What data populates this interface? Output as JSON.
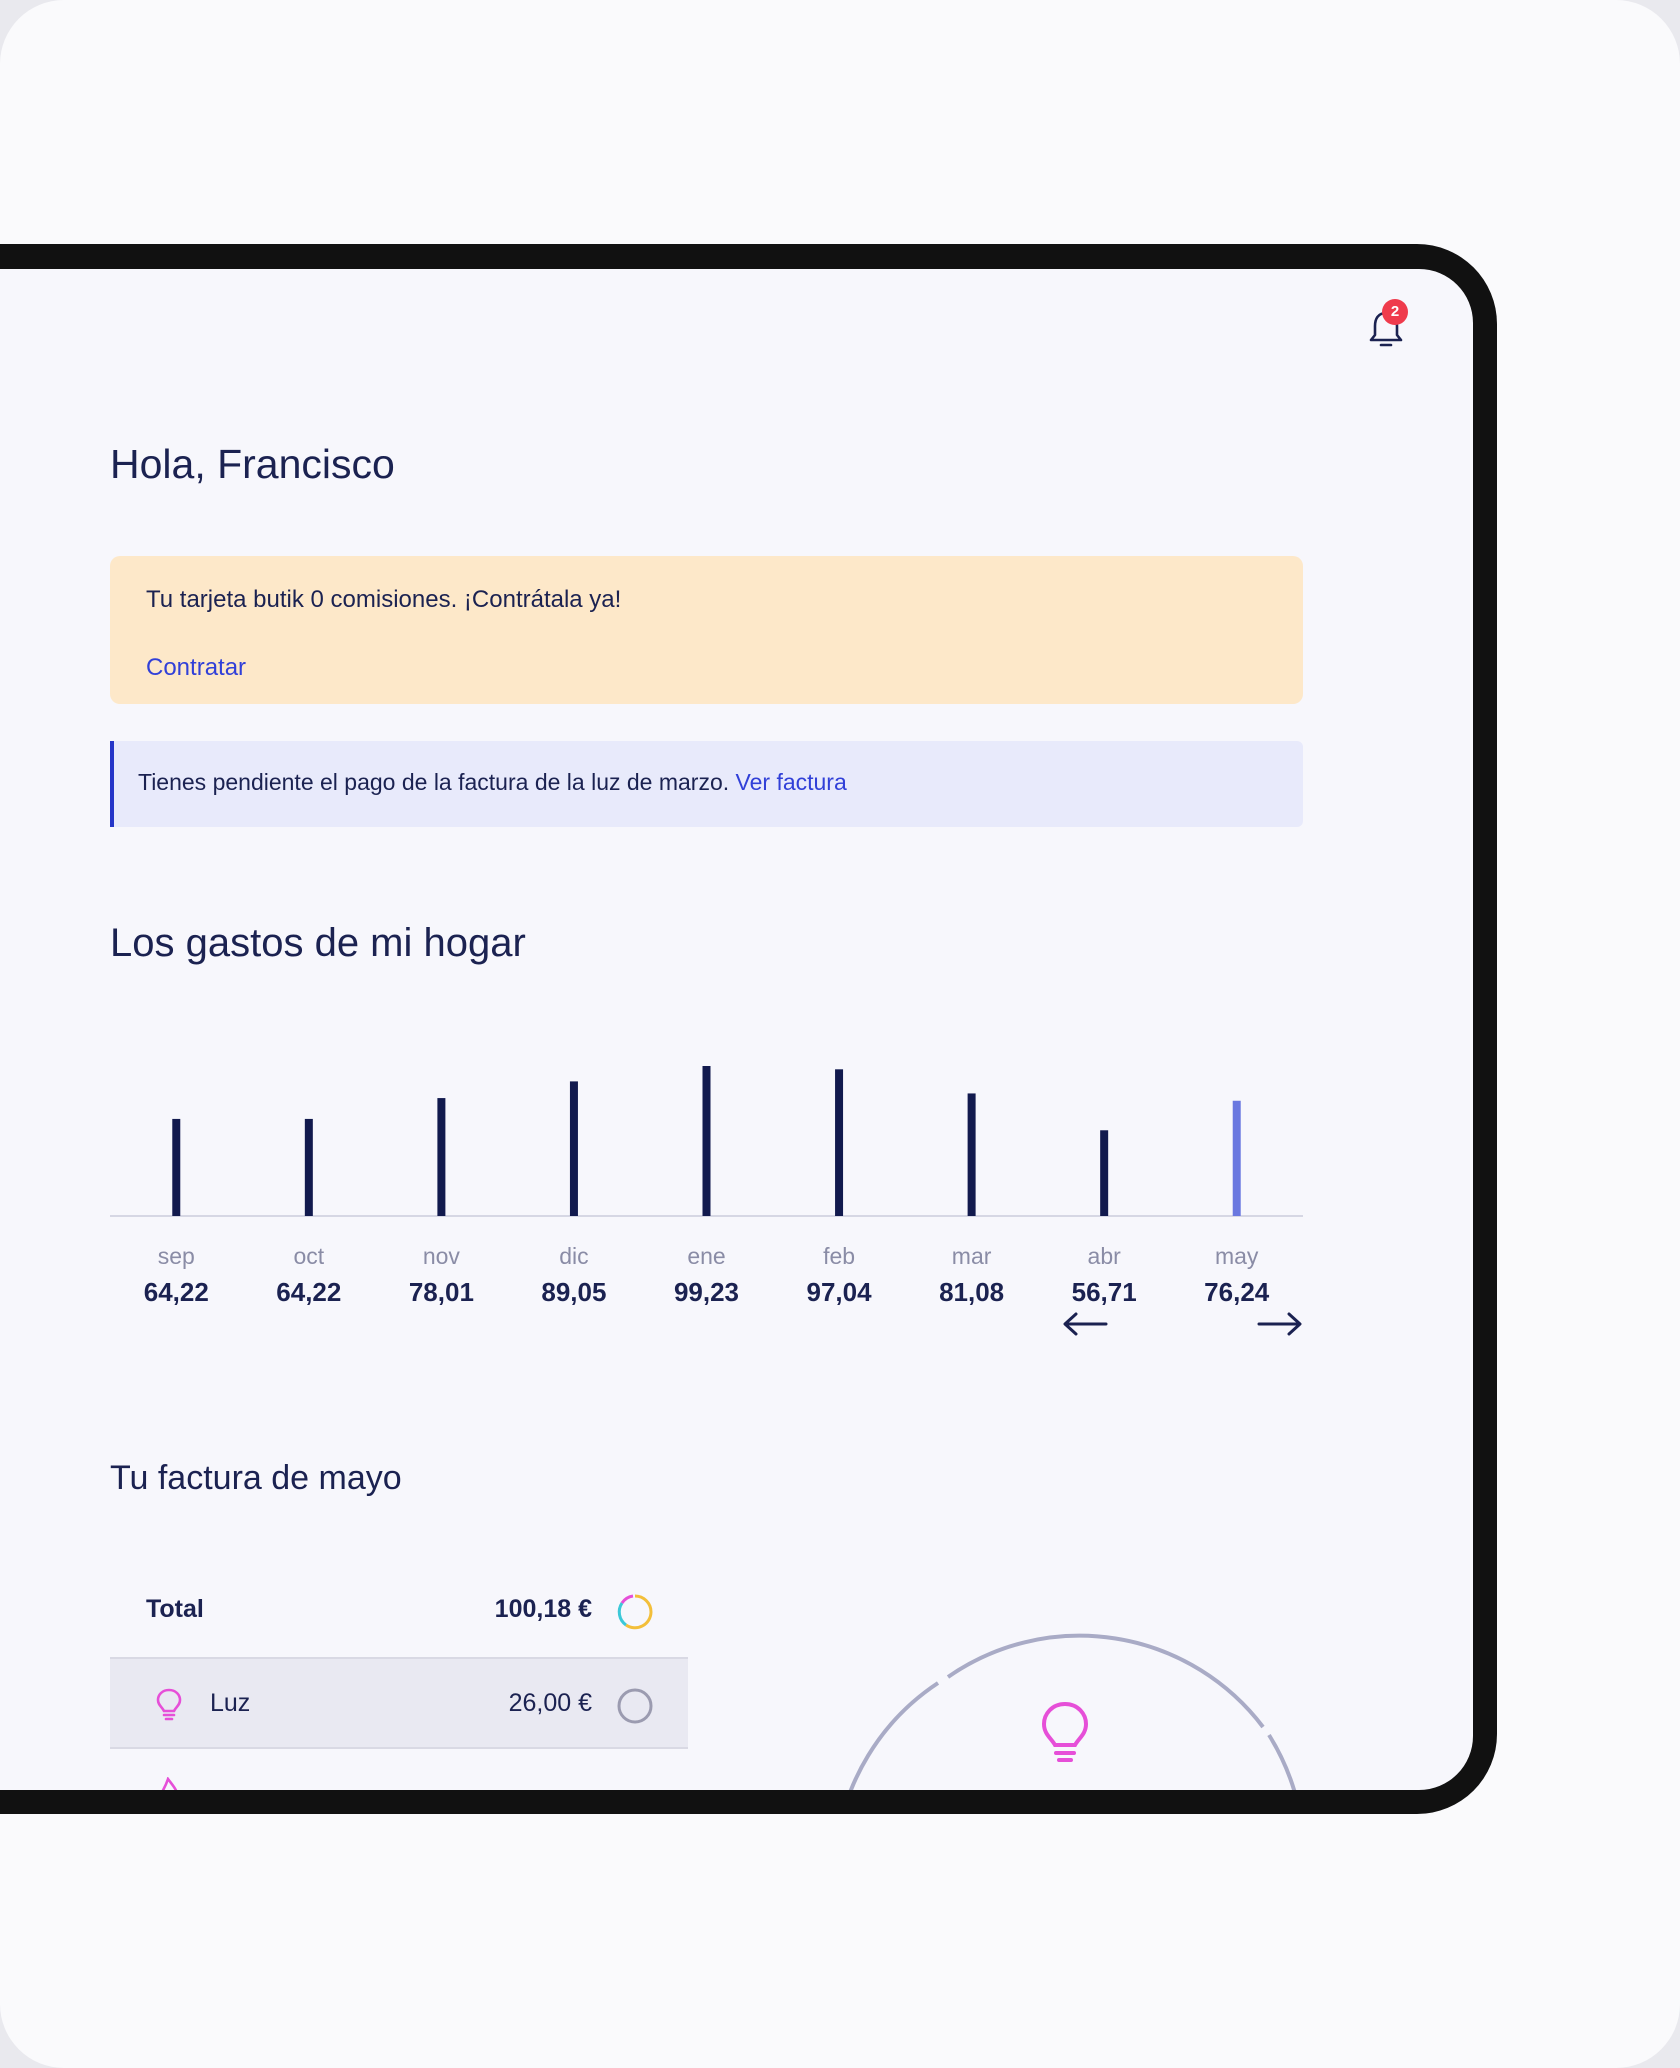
{
  "header": {
    "notification_count": "2",
    "bell_icon": "bell-icon"
  },
  "greeting": "Hola, Francisco",
  "promo": {
    "text": "Tu tarjeta butik 0 comisiones. ¡Contrátala ya!",
    "link": "Contratar",
    "background": "#fde8c9"
  },
  "notice": {
    "text": "Tienes pendiente el pago de la factura de la luz de marzo.",
    "link": "Ver factura"
  },
  "expenses": {
    "title": "Los gastos de mi hogar",
    "prev_icon": "arrow-left-icon",
    "next_icon": "arrow-right-icon"
  },
  "chart_data": {
    "type": "bar",
    "categories": [
      "sep",
      "oct",
      "nov",
      "dic",
      "ene",
      "feb",
      "mar",
      "abr",
      "may"
    ],
    "values": [
      64.22,
      64.22,
      78.01,
      89.05,
      99.23,
      97.04,
      81.08,
      56.71,
      76.24
    ],
    "labels": [
      "64,22",
      "64,22",
      "78,01",
      "89,05",
      "99,23",
      "97,04",
      "81,08",
      "56,71",
      "76,24"
    ],
    "bar_color": "#121a4e",
    "highlight_color": "#6a78e0",
    "highlight_index": 8
  },
  "bill": {
    "title": "Tu factura de mayo",
    "total_label": "Total",
    "total_amount": "100,18 €",
    "items": [
      {
        "label": "Luz",
        "amount": "26,00 €",
        "icon": "lightbulb-icon"
      }
    ],
    "next_icon": "flame-icon",
    "accent_pink": "#e64fd8",
    "accent_cyan": "#3cc8d8",
    "accent_yellow": "#f3bf3a"
  }
}
